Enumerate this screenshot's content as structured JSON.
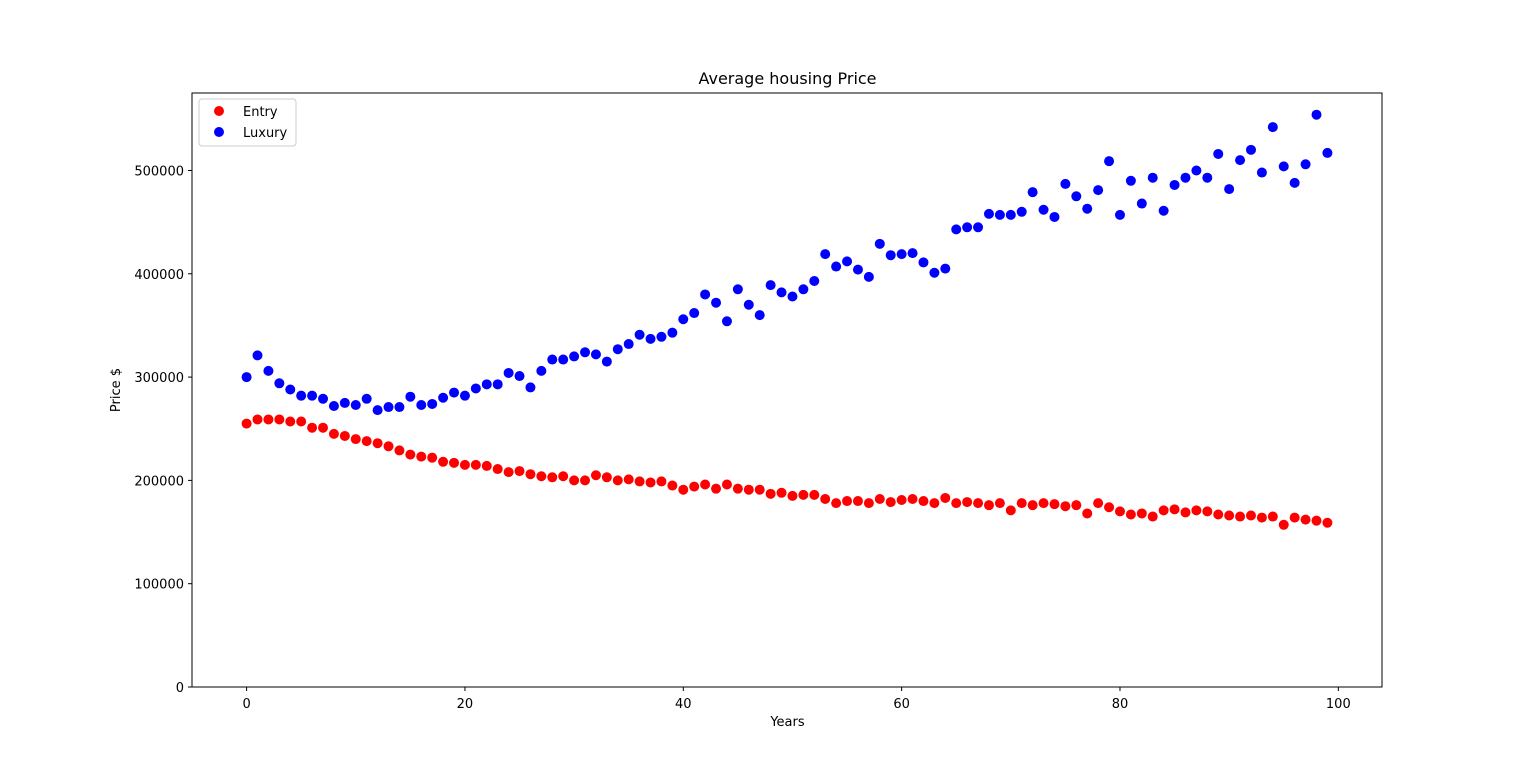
{
  "chart_data": {
    "type": "scatter",
    "title": "Average housing Price",
    "xlabel": "Years",
    "ylabel": "Price $",
    "xlim": [
      -5,
      104
    ],
    "ylim": [
      0,
      575000
    ],
    "xticks": [
      0,
      20,
      40,
      60,
      80,
      100
    ],
    "yticks": [
      0,
      100000,
      200000,
      300000,
      400000,
      500000
    ],
    "grid": false,
    "legend_position": "upper-left",
    "x": [
      0,
      1,
      2,
      3,
      4,
      5,
      6,
      7,
      8,
      9,
      10,
      11,
      12,
      13,
      14,
      15,
      16,
      17,
      18,
      19,
      20,
      21,
      22,
      23,
      24,
      25,
      26,
      27,
      28,
      29,
      30,
      31,
      32,
      33,
      34,
      35,
      36,
      37,
      38,
      39,
      40,
      41,
      42,
      43,
      44,
      45,
      46,
      47,
      48,
      49,
      50,
      51,
      52,
      53,
      54,
      55,
      56,
      57,
      58,
      59,
      60,
      61,
      62,
      63,
      64,
      65,
      66,
      67,
      68,
      69,
      70,
      71,
      72,
      73,
      74,
      75,
      76,
      77,
      78,
      79,
      80,
      81,
      82,
      83,
      84,
      85,
      86,
      87,
      88,
      89,
      90,
      91,
      92,
      93,
      94,
      95,
      96,
      97,
      98,
      99
    ],
    "series": [
      {
        "name": "Entry",
        "color": "#ff0000",
        "values": [
          255000,
          259000,
          259000,
          259000,
          257000,
          257000,
          251000,
          251000,
          245000,
          243000,
          240000,
          238000,
          236000,
          233000,
          229000,
          225000,
          223000,
          222000,
          218000,
          217000,
          215000,
          215000,
          214000,
          211000,
          208000,
          209000,
          206000,
          204000,
          203000,
          204000,
          200000,
          200000,
          205000,
          203000,
          200000,
          201000,
          199000,
          198000,
          199000,
          195000,
          191000,
          194000,
          196000,
          192000,
          196000,
          192000,
          191000,
          191000,
          187000,
          188000,
          185000,
          186000,
          186000,
          182000,
          178000,
          180000,
          180000,
          178000,
          182000,
          179000,
          181000,
          182000,
          180000,
          178000,
          183000,
          178000,
          179000,
          178000,
          176000,
          178000,
          171000,
          178000,
          176000,
          178000,
          177000,
          175000,
          176000,
          168000,
          178000,
          174000,
          170000,
          167000,
          168000,
          165000,
          171000,
          172000,
          169000,
          171000,
          170000,
          167000,
          166000,
          165000,
          166000,
          164000,
          165000,
          157000,
          164000,
          162000,
          161000,
          159000
        ]
      },
      {
        "name": "Luxury",
        "color": "#0000ff",
        "values": [
          300000,
          321000,
          306000,
          294000,
          288000,
          282000,
          282000,
          279000,
          272000,
          275000,
          273000,
          279000,
          268000,
          271000,
          271000,
          281000,
          273000,
          274000,
          280000,
          285000,
          282000,
          289000,
          293000,
          293000,
          304000,
          301000,
          290000,
          306000,
          317000,
          317000,
          320000,
          324000,
          322000,
          315000,
          327000,
          332000,
          341000,
          337000,
          339000,
          343000,
          356000,
          362000,
          380000,
          372000,
          354000,
          385000,
          370000,
          360000,
          389000,
          382000,
          378000,
          385000,
          393000,
          419000,
          407000,
          412000,
          404000,
          397000,
          429000,
          418000,
          419000,
          420000,
          411000,
          401000,
          405000,
          443000,
          445000,
          445000,
          458000,
          457000,
          457000,
          460000,
          479000,
          462000,
          455000,
          487000,
          475000,
          463000,
          481000,
          509000,
          457000,
          490000,
          468000,
          493000,
          461000,
          486000,
          493000,
          500000,
          493000,
          516000,
          482000,
          510000,
          520000,
          498000,
          542000,
          504000,
          488000,
          506000,
          554000,
          517000
        ]
      }
    ]
  }
}
